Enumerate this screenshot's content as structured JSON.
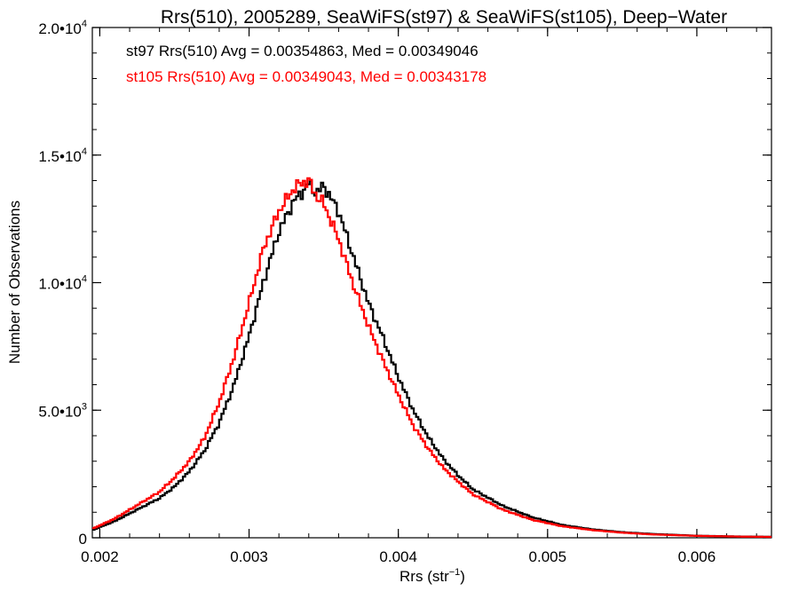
{
  "chart_data": {
    "type": "line",
    "title": "Rrs(510), 2005289, SeaWiFS(st97) & SeaWiFS(st105), Deep−Water",
    "xlabel": "Rrs (str",
    "xlabel_sup": "−1",
    "xlabel_tail": ")",
    "ylabel": "Number of Observations",
    "xlim": [
      0.00195,
      0.0065
    ],
    "ylim": [
      0,
      20000
    ],
    "grid": false,
    "x_ticks": [
      {
        "value": 0.002,
        "label": "0.002"
      },
      {
        "value": 0.003,
        "label": "0.003"
      },
      {
        "value": 0.004,
        "label": "0.004"
      },
      {
        "value": 0.005,
        "label": "0.005"
      },
      {
        "value": 0.006,
        "label": "0.006"
      }
    ],
    "y_ticks": [
      {
        "value": 0,
        "mant": "0",
        "exp": ""
      },
      {
        "value": 5000,
        "mant": "5.0•10",
        "exp": "3"
      },
      {
        "value": 10000,
        "mant": "1.0•10",
        "exp": "4"
      },
      {
        "value": 15000,
        "mant": "1.5•10",
        "exp": "4"
      },
      {
        "value": 20000,
        "mant": "2.0•10",
        "exp": "4"
      }
    ],
    "annotations": [
      {
        "text": "st97 Rrs(510) Avg = 0.00354863, Med = 0.00349046",
        "color": "#000000"
      },
      {
        "text": "st105 Rrs(510) Avg = 0.00349043, Med = 0.00343178",
        "color": "#ff0000"
      }
    ],
    "series": [
      {
        "color": "#000000",
        "x": [
          0.00195,
          0.0021,
          0.0022,
          0.0023,
          0.0024,
          0.0025,
          0.0026,
          0.0027,
          0.0028,
          0.0029,
          0.003,
          0.0031,
          0.0032,
          0.0033,
          0.00335,
          0.0034,
          0.00345,
          0.0035,
          0.0036,
          0.0037,
          0.0038,
          0.0039,
          0.004,
          0.0041,
          0.0042,
          0.0043,
          0.0044,
          0.0045,
          0.0047,
          0.0049,
          0.0051,
          0.0053,
          0.0055,
          0.0057,
          0.006,
          0.0063,
          0.0065
        ],
        "y": [
          300,
          650,
          950,
          1250,
          1550,
          2000,
          2600,
          3400,
          4500,
          6000,
          7900,
          10100,
          12000,
          13200,
          13500,
          13900,
          13500,
          13800,
          12800,
          11000,
          9200,
          7800,
          6300,
          5000,
          3950,
          3100,
          2450,
          1900,
          1250,
          800,
          500,
          330,
          220,
          150,
          80,
          50,
          40
        ]
      },
      {
        "color": "#ff0000",
        "x": [
          0.00195,
          0.0021,
          0.0022,
          0.0023,
          0.0024,
          0.0025,
          0.0026,
          0.0027,
          0.0028,
          0.0029,
          0.003,
          0.0031,
          0.0032,
          0.0033,
          0.00335,
          0.0034,
          0.00345,
          0.0035,
          0.0036,
          0.0037,
          0.0038,
          0.0039,
          0.004,
          0.0041,
          0.0042,
          0.0043,
          0.0044,
          0.0045,
          0.0047,
          0.0049,
          0.0051,
          0.0053,
          0.0055,
          0.0057,
          0.006,
          0.0063,
          0.0065
        ],
        "y": [
          350,
          750,
          1100,
          1450,
          1800,
          2350,
          3000,
          3900,
          5300,
          7100,
          9200,
          11400,
          12800,
          13700,
          13900,
          14000,
          13400,
          13100,
          11700,
          9900,
          8300,
          6900,
          5600,
          4400,
          3500,
          2750,
          2200,
          1700,
          1100,
          700,
          450,
          300,
          200,
          130,
          75,
          45,
          35
        ]
      }
    ]
  }
}
